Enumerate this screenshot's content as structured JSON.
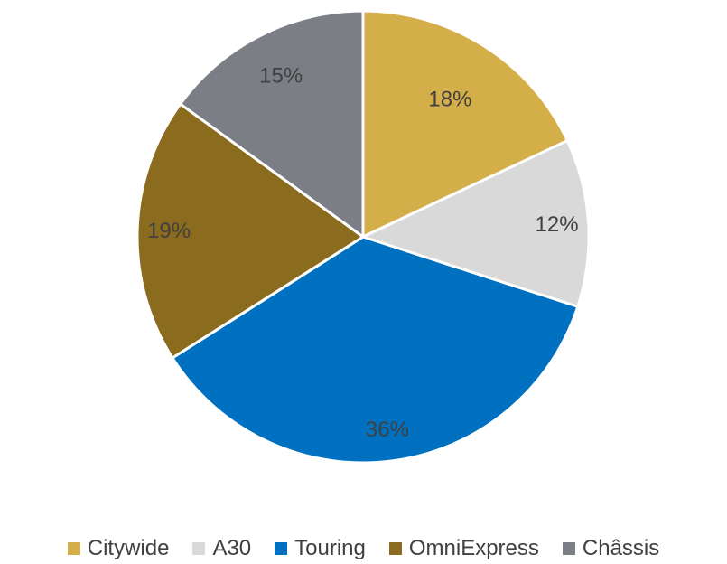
{
  "chart_data": {
    "type": "pie",
    "title": "",
    "categories": [
      "Citywide",
      "A30",
      "Touring",
      "OmniExpress",
      "Châssis"
    ],
    "values": [
      18,
      12,
      36,
      19,
      15
    ],
    "labels": [
      "18%",
      "12%",
      "36%",
      "19%",
      "15%"
    ],
    "colors": [
      "#D4AE48",
      "#D9D9DA",
      "#0070C0",
      "#8B6B1E",
      "#7C7E86"
    ],
    "legend_position": "bottom",
    "start_angle": "12 o'clock",
    "direction": "clockwise"
  }
}
